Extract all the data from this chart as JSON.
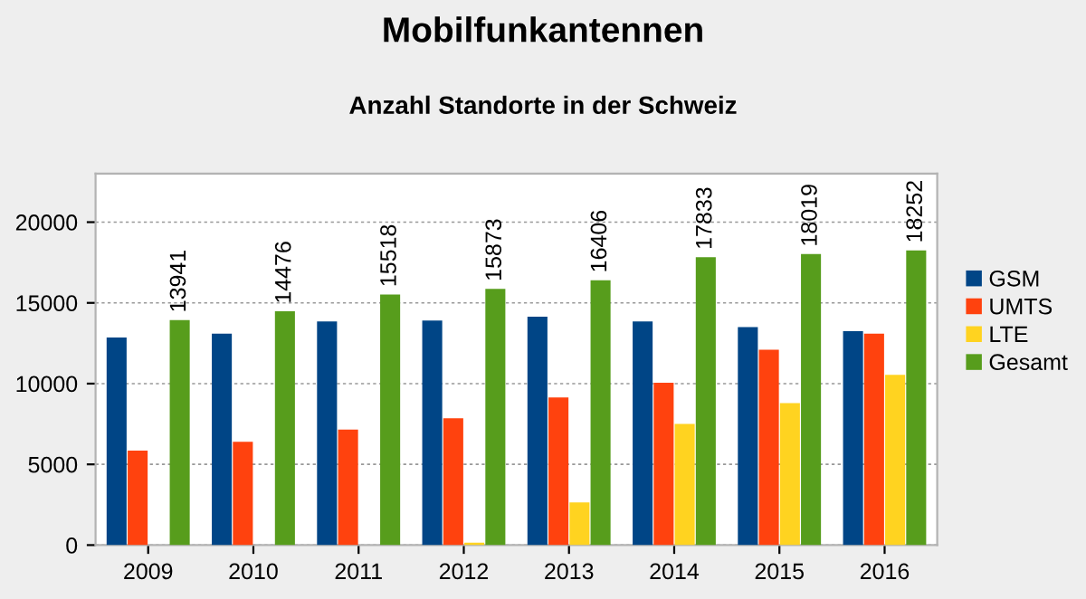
{
  "chart_data": {
    "type": "bar",
    "title": "Mobilfunkantennen",
    "subtitle": "Anzahl Standorte in der Schweiz",
    "categories": [
      "2009",
      "2010",
      "2011",
      "2012",
      "2013",
      "2014",
      "2015",
      "2016"
    ],
    "series": [
      {
        "name": "GSM",
        "color": "#004586",
        "values": [
          12850,
          13100,
          13850,
          13900,
          14150,
          13850,
          13500,
          13250
        ]
      },
      {
        "name": "UMTS",
        "color": "#ff420e",
        "values": [
          5850,
          6400,
          7150,
          7850,
          9150,
          10050,
          12100,
          13100
        ]
      },
      {
        "name": "LTE",
        "color": "#ffd320",
        "values": [
          null,
          null,
          null,
          150,
          2650,
          7500,
          8800,
          10550
        ]
      },
      {
        "name": "Gesamt",
        "color": "#579d1c",
        "values": [
          13941,
          14476,
          15518,
          15873,
          16406,
          17833,
          18019,
          18252
        ],
        "value_labels": [
          "13941",
          "14476",
          "15518",
          "15873",
          "16406",
          "17833",
          "18019",
          "18252"
        ]
      }
    ],
    "ylim": [
      0,
      23000
    ],
    "yticks": [
      0,
      5000,
      10000,
      15000,
      20000
    ],
    "grid": "y",
    "legend": "right"
  }
}
